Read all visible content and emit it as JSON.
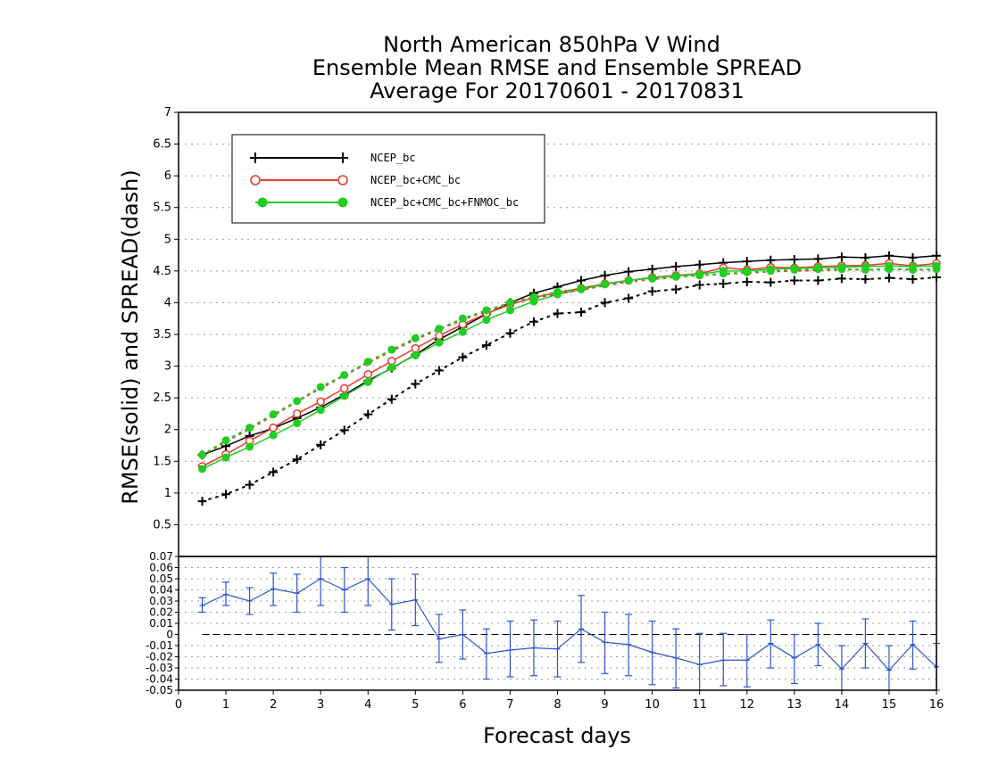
{
  "chart_data": [
    {
      "type": "line",
      "title": "North American 850hPa V Wind",
      "subtitle": [
        "Ensemble Mean RMSE and Ensemble SPREAD",
        "Average For 20170601 - 20170831"
      ],
      "xlabel": "Forecast days",
      "ylabel": "RMSE(solid) and SPREAD(dash)",
      "xlim": [
        0,
        16
      ],
      "ylim": [
        0,
        7
      ],
      "x_ticks": [
        "0",
        "1",
        "2",
        "3",
        "4",
        "5",
        "6",
        "7",
        "8",
        "9",
        "10",
        "11",
        "12",
        "13",
        "14",
        "15",
        "16"
      ],
      "y_ticks": [
        "0.5",
        "1",
        "1.5",
        "2",
        "2.5",
        "3",
        "3.5",
        "4",
        "4.5",
        "5",
        "5.5",
        "6",
        "6.5",
        "7"
      ],
      "grid": true,
      "legend_position": "top-left",
      "x": [
        0.5,
        1,
        1.5,
        2,
        2.5,
        3,
        3.5,
        4,
        4.5,
        5,
        5.5,
        6,
        6.5,
        7,
        7.5,
        8,
        8.5,
        9,
        9.5,
        10,
        10.5,
        11,
        11.5,
        12,
        12.5,
        13,
        13.5,
        14,
        14.5,
        15,
        15.5,
        16
      ],
      "series": [
        {
          "name": "NCEP_bc",
          "kind": "rmse",
          "color": "#000000",
          "marker": "plus",
          "values": [
            1.6,
            1.74,
            1.9,
            2.02,
            2.18,
            2.35,
            2.55,
            2.77,
            2.97,
            3.18,
            3.42,
            3.62,
            3.82,
            4.0,
            4.15,
            4.25,
            4.35,
            4.43,
            4.49,
            4.53,
            4.57,
            4.6,
            4.63,
            4.65,
            4.67,
            4.68,
            4.69,
            4.72,
            4.71,
            4.74,
            4.71,
            4.74
          ]
        },
        {
          "name": "NCEP_bc+CMC_bc",
          "kind": "rmse",
          "color": "#e83a2e",
          "marker": "open-circle",
          "values": [
            1.42,
            1.61,
            1.82,
            2.03,
            2.25,
            2.44,
            2.65,
            2.87,
            3.08,
            3.28,
            3.48,
            3.66,
            3.83,
            3.97,
            4.08,
            4.16,
            4.23,
            4.3,
            4.35,
            4.4,
            4.43,
            4.46,
            4.55,
            4.52,
            4.56,
            4.55,
            4.57,
            4.58,
            4.59,
            4.62,
            4.58,
            4.62
          ]
        },
        {
          "name": "NCEP_bc+CMC_bc+FNMOC_bc",
          "kind": "rmse",
          "color": "#22cc22",
          "marker": "filled-circle",
          "values": [
            1.38,
            1.56,
            1.73,
            1.91,
            2.1,
            2.31,
            2.53,
            2.75,
            2.98,
            3.17,
            3.37,
            3.54,
            3.73,
            3.88,
            4.02,
            4.13,
            4.21,
            4.29,
            4.35,
            4.39,
            4.42,
            4.45,
            4.5,
            4.5,
            4.53,
            4.54,
            4.55,
            4.56,
            4.57,
            4.58,
            4.57,
            4.58
          ]
        },
        {
          "name": "NCEP_bc",
          "kind": "spread",
          "color": "#000000",
          "marker": "plus",
          "values": [
            0.87,
            0.98,
            1.13,
            1.33,
            1.53,
            1.76,
            1.99,
            2.24,
            2.48,
            2.72,
            2.93,
            3.14,
            3.33,
            3.52,
            3.7,
            3.83,
            3.85,
            4.0,
            4.07,
            4.18,
            4.21,
            4.28,
            4.3,
            4.33,
            4.32,
            4.35,
            4.35,
            4.38,
            4.37,
            4.39,
            4.37,
            4.4
          ]
        },
        {
          "name": "NCEP_bc+CMC_bc",
          "kind": "spread",
          "color": "#e83a2e",
          "marker": "open-circle",
          "values": [
            1.59,
            1.81,
            2.01,
            2.22,
            2.44,
            2.65,
            2.85,
            3.05,
            3.24,
            3.42,
            3.58,
            3.73,
            3.87,
            3.98,
            4.07,
            4.14,
            4.2,
            4.27,
            4.33,
            4.37,
            4.4,
            4.43,
            4.45,
            4.47,
            4.49,
            4.5,
            4.51,
            4.52,
            4.52,
            4.53,
            4.52,
            4.52
          ]
        },
        {
          "name": "NCEP_bc+CMC_bc+FNMOC_bc",
          "kind": "spread",
          "color": "#22cc22",
          "marker": "filled-circle",
          "values": [
            1.6,
            1.83,
            2.03,
            2.24,
            2.45,
            2.67,
            2.86,
            3.07,
            3.26,
            3.44,
            3.59,
            3.75,
            3.88,
            4.0,
            4.09,
            4.17,
            4.22,
            4.29,
            4.35,
            4.38,
            4.41,
            4.43,
            4.46,
            4.48,
            4.5,
            4.52,
            4.53,
            4.53,
            4.52,
            4.53,
            4.52,
            4.53
          ]
        }
      ]
    },
    {
      "type": "line",
      "xlim": [
        0,
        16
      ],
      "ylim": [
        -0.05,
        0.07
      ],
      "y_ticks": [
        "-0.05",
        "-0.04",
        "-0.03",
        "-0.02",
        "-0.01",
        "0",
        "0.01",
        "0.02",
        "0.03",
        "0.04",
        "0.05",
        "0.06",
        "0.07"
      ],
      "grid": true,
      "zero_line": true,
      "x": [
        0.5,
        1,
        1.5,
        2,
        2.5,
        3,
        3.5,
        4,
        4.5,
        5,
        5.5,
        6,
        6.5,
        7,
        7.5,
        8,
        8.5,
        9,
        9.5,
        10,
        10.5,
        11,
        11.5,
        12,
        12.5,
        13,
        13.5,
        14,
        14.5,
        15,
        15.5,
        16
      ],
      "series": [
        {
          "color": "#2b53d1",
          "values": [
            0.026,
            0.036,
            0.03,
            0.041,
            0.037,
            0.05,
            0.04,
            0.05,
            0.027,
            0.031,
            -0.004,
            0.0,
            -0.017,
            -0.014,
            -0.012,
            -0.013,
            0.005,
            -0.007,
            -0.009,
            -0.016,
            -0.021,
            -0.027,
            -0.023,
            -0.023,
            -0.008,
            -0.021,
            -0.009,
            -0.031,
            -0.008,
            -0.032,
            -0.009,
            -0.029
          ],
          "err_low": [
            0.02,
            0.026,
            0.018,
            0.026,
            0.02,
            0.026,
            0.02,
            0.026,
            0.004,
            0.008,
            -0.025,
            -0.022,
            -0.04,
            -0.038,
            -0.037,
            -0.038,
            -0.025,
            -0.035,
            -0.037,
            -0.045,
            -0.048,
            -0.05,
            -0.046,
            -0.047,
            -0.03,
            -0.044,
            -0.028,
            -0.05,
            -0.03,
            -0.05,
            -0.031,
            -0.05
          ],
          "err_high": [
            0.033,
            0.047,
            0.042,
            0.055,
            0.054,
            0.07,
            0.06,
            0.07,
            0.05,
            0.054,
            0.018,
            0.022,
            0.005,
            0.012,
            0.013,
            0.012,
            0.035,
            0.02,
            0.018,
            0.012,
            0.005,
            0.001,
            0.001,
            0.0,
            0.013,
            0.0,
            0.01,
            -0.01,
            0.014,
            -0.01,
            0.012,
            -0.008
          ]
        }
      ]
    }
  ]
}
